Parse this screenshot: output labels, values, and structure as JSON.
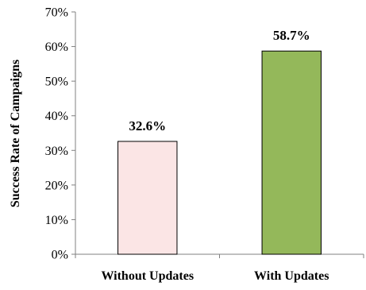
{
  "chart_data": {
    "type": "bar",
    "categories": [
      "Without Updates",
      "With Updates"
    ],
    "values": [
      32.6,
      58.7
    ],
    "data_labels": [
      "32.6%",
      "58.7%"
    ],
    "bar_colors": [
      "#fbe5e5",
      "#94b85a"
    ],
    "bar_stroke": "#000000",
    "title": "",
    "xlabel": "",
    "ylabel": "Success Rate of Campaigns",
    "ylim": [
      0,
      70
    ],
    "y_ticks": [
      0,
      10,
      20,
      30,
      40,
      50,
      60,
      70
    ],
    "y_tick_labels": [
      "0%",
      "10%",
      "20%",
      "30%",
      "40%",
      "50%",
      "60%",
      "70%"
    ],
    "grid": false,
    "legend": "none"
  }
}
